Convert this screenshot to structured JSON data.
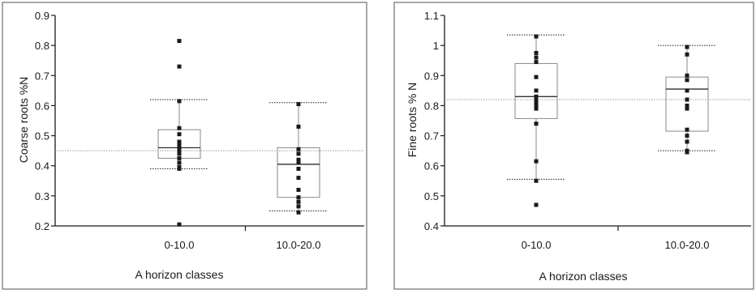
{
  "colors": {
    "ink": "#1a1a1a",
    "box_stroke": "#8a8a8a",
    "mean_line": "#9a9a9a",
    "frame": "#6e6e6e"
  },
  "chart_data": [
    {
      "type": "box",
      "xlabel": "A horizon classes",
      "ylabel": "Coarse roots %N",
      "ylim": [
        0.2,
        0.9
      ],
      "yticks": [
        "0.2",
        "0.3",
        "0.4",
        "0.5",
        "0.6",
        "0.7",
        "0.8",
        "0.9"
      ],
      "ytick_values": [
        0.2,
        0.3,
        0.4,
        0.5,
        0.6,
        0.7,
        0.8,
        0.9
      ],
      "categories": [
        "0-10.0",
        "10.0-20.0"
      ],
      "grand_mean": 0.45,
      "grid": false,
      "boxes": [
        {
          "category": "0-10.0",
          "whisker_low": 0.39,
          "q1": 0.425,
          "median": 0.46,
          "q3": 0.52,
          "whisker_high": 0.62,
          "points": [
            0.815,
            0.73,
            0.615,
            0.525,
            0.505,
            0.48,
            0.47,
            0.46,
            0.45,
            0.44,
            0.425,
            0.41,
            0.395,
            0.39,
            0.205
          ]
        },
        {
          "category": "10.0-20.0",
          "whisker_low": 0.25,
          "q1": 0.295,
          "median": 0.405,
          "q3": 0.46,
          "whisker_high": 0.61,
          "points": [
            0.605,
            0.53,
            0.455,
            0.44,
            0.42,
            0.41,
            0.39,
            0.36,
            0.32,
            0.295,
            0.28,
            0.265,
            0.245
          ]
        }
      ]
    },
    {
      "type": "box",
      "xlabel": "A horizon classes",
      "ylabel": "Fine roots % N",
      "ylim": [
        0.4,
        1.1
      ],
      "yticks": [
        "0.4",
        "0.5",
        "0.6",
        "0.7",
        "0.8",
        "0.9",
        "1",
        "1.1"
      ],
      "ytick_values": [
        0.4,
        0.5,
        0.6,
        0.7,
        0.8,
        0.9,
        1.0,
        1.1
      ],
      "categories": [
        "0-10.0",
        "10.0-20.0"
      ],
      "grand_mean": 0.82,
      "grid": false,
      "boxes": [
        {
          "category": "0-10.0",
          "whisker_low": 0.555,
          "q1": 0.757,
          "median": 0.83,
          "q3": 0.94,
          "whisker_high": 1.035,
          "points": [
            1.03,
            0.975,
            0.96,
            0.945,
            0.895,
            0.85,
            0.83,
            0.82,
            0.81,
            0.8,
            0.79,
            0.74,
            0.615,
            0.55,
            0.47
          ]
        },
        {
          "category": "10.0-20.0",
          "whisker_low": 0.65,
          "q1": 0.715,
          "median": 0.855,
          "q3": 0.895,
          "whisker_high": 1.0,
          "points": [
            0.995,
            0.97,
            0.9,
            0.885,
            0.85,
            0.82,
            0.8,
            0.79,
            0.72,
            0.7,
            0.68,
            0.65,
            0.645
          ]
        }
      ]
    }
  ]
}
